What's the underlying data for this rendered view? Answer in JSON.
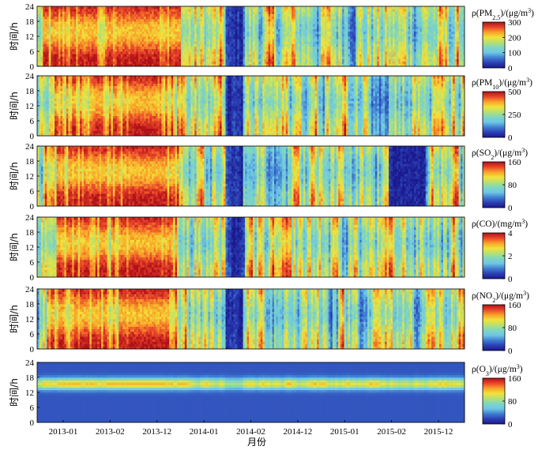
{
  "chart_data": [
    {
      "type": "heatmap",
      "pollutant": "PM2.5",
      "colorbar_title": [
        "ρ(PM",
        "2.5",
        ")/(μg/m",
        "3",
        ")"
      ],
      "colorbar_ticks": [
        0,
        100,
        200,
        300
      ],
      "vmax": 300,
      "ylabel": "时间/h",
      "yticks": [
        0,
        6,
        12,
        18,
        24
      ]
    },
    {
      "type": "heatmap",
      "pollutant": "PM10",
      "colorbar_title": [
        "ρ(PM",
        "10",
        ")/(μg/m",
        "3",
        ")"
      ],
      "colorbar_ticks": [
        0,
        250,
        500
      ],
      "vmax": 500,
      "ylabel": "时间/h",
      "yticks": [
        0,
        6,
        12,
        18,
        24
      ]
    },
    {
      "type": "heatmap",
      "pollutant": "SO2",
      "colorbar_title": [
        "ρ(SO",
        "2",
        ")/(μg/m",
        "3",
        ")"
      ],
      "colorbar_ticks": [
        0,
        80,
        160
      ],
      "vmax": 160,
      "ylabel": "时间/h",
      "yticks": [
        0,
        6,
        12,
        18,
        24
      ]
    },
    {
      "type": "heatmap",
      "pollutant": "CO",
      "colorbar_title": [
        "ρ(CO)/(mg/m",
        "3",
        ")",
        "",
        ""
      ],
      "colorbar_ticks": [
        0,
        2,
        4
      ],
      "vmax": 4,
      "ylabel": "时间/h",
      "yticks": [
        0,
        6,
        12,
        18,
        24
      ]
    },
    {
      "type": "heatmap",
      "pollutant": "NO2",
      "colorbar_title": [
        "ρ(NO",
        "2",
        ")/(μg/m",
        "3",
        ")"
      ],
      "colorbar_ticks": [
        0,
        80,
        160
      ],
      "vmax": 160,
      "ylabel": "时间/h",
      "yticks": [
        0,
        6,
        12,
        18,
        24
      ]
    },
    {
      "type": "heatmap",
      "pollutant": "O3",
      "colorbar_title": [
        "ρ(O",
        "3",
        ")/(μg/m",
        "3",
        ")"
      ],
      "colorbar_ticks": [
        0,
        80,
        160
      ],
      "vmax": 160,
      "ylabel": "时间/h",
      "yticks": [
        0,
        6,
        12,
        18,
        24
      ]
    }
  ],
  "x_axis": {
    "xlabel": "月份",
    "tick_labels": [
      "2013-01",
      "2013-02",
      "2013-12",
      "2014-01",
      "2014-02",
      "2014-12",
      "2015-01",
      "2015-02",
      "2015-12"
    ]
  },
  "colormap": [
    "#1a1a8c",
    "#2c3fb5",
    "#3f7fd0",
    "#6ec6e6",
    "#7fd6c0",
    "#b8e070",
    "#f2e23a",
    "#f9a12a",
    "#e8452a",
    "#b01018"
  ]
}
